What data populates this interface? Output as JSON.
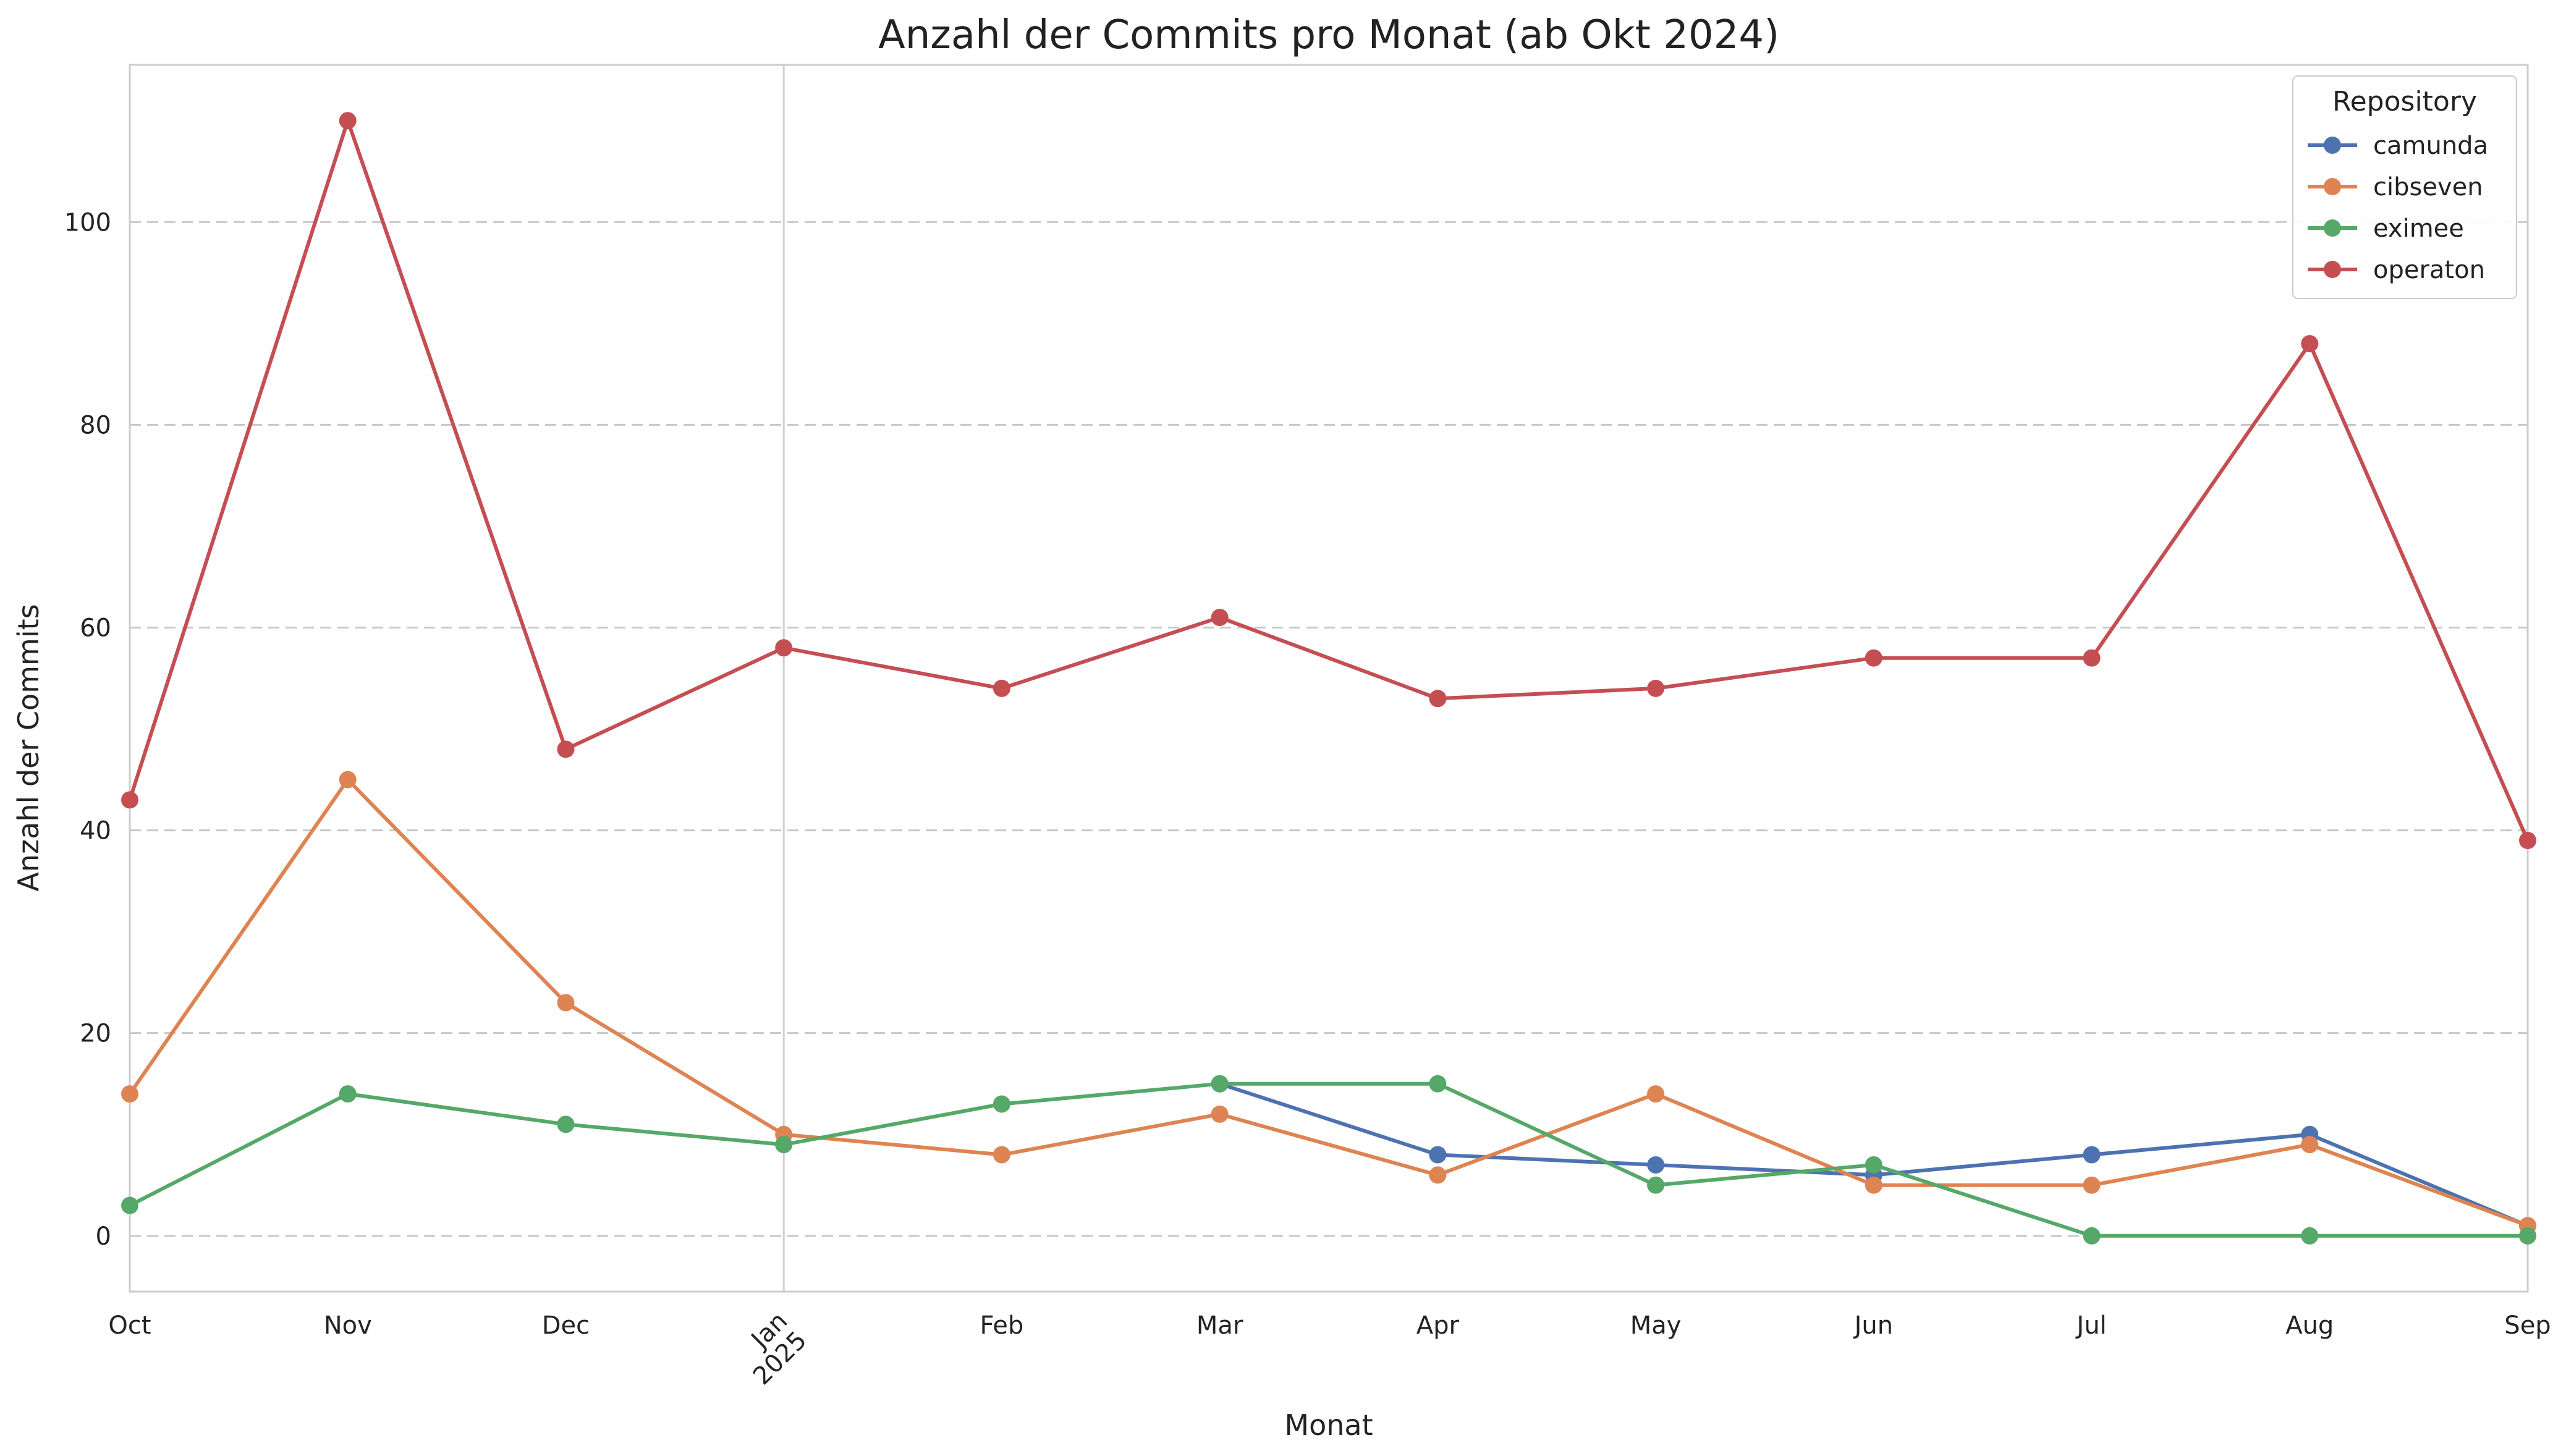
{
  "chart_data": {
    "type": "line",
    "title": "Anzahl der Commits pro Monat (ab Okt 2024)",
    "xlabel": "Monat",
    "ylabel": "Anzahl der Commits",
    "categories": [
      "Oct",
      "Nov",
      "Dec",
      "Jan",
      "Feb",
      "Mar",
      "Apr",
      "May",
      "Jun",
      "Jul",
      "Aug",
      "Sep"
    ],
    "year_marker": {
      "category": "Jan",
      "label": "2025"
    },
    "yticks": [
      0,
      20,
      40,
      60,
      80,
      100
    ],
    "ylim": [
      -5.5,
      115.5
    ],
    "grid": "horizontal-dashed",
    "legend": {
      "title": "Repository",
      "placement": "top-right"
    },
    "series": [
      {
        "name": "camunda",
        "color": "#4c72b0",
        "values": [
          null,
          null,
          null,
          null,
          null,
          15,
          8,
          7,
          6,
          8,
          10,
          1
        ]
      },
      {
        "name": "cibseven",
        "color": "#dd8452",
        "values": [
          14,
          45,
          23,
          10,
          8,
          12,
          6,
          14,
          5,
          5,
          9,
          1
        ]
      },
      {
        "name": "eximee",
        "color": "#55a868",
        "values": [
          3,
          14,
          11,
          9,
          13,
          15,
          15,
          5,
          7,
          0,
          0,
          0
        ]
      },
      {
        "name": "operaton",
        "color": "#c44e52",
        "values": [
          43,
          110,
          48,
          58,
          54,
          61,
          53,
          54,
          57,
          57,
          88,
          39
        ]
      }
    ]
  }
}
